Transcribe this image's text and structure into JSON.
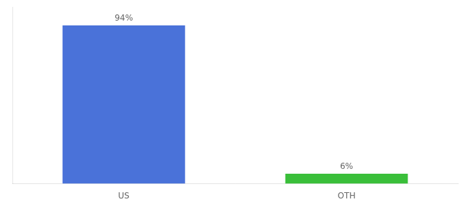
{
  "chart_data": {
    "type": "bar",
    "categories": [
      "US",
      "OTH"
    ],
    "values": [
      94,
      6
    ],
    "value_labels": [
      "94%",
      "6%"
    ],
    "colors": [
      "#4a72d9",
      "#3abf3a"
    ],
    "ylim": [
      0,
      105
    ],
    "grid": false,
    "data_labels": true,
    "tick_labels": "x"
  }
}
